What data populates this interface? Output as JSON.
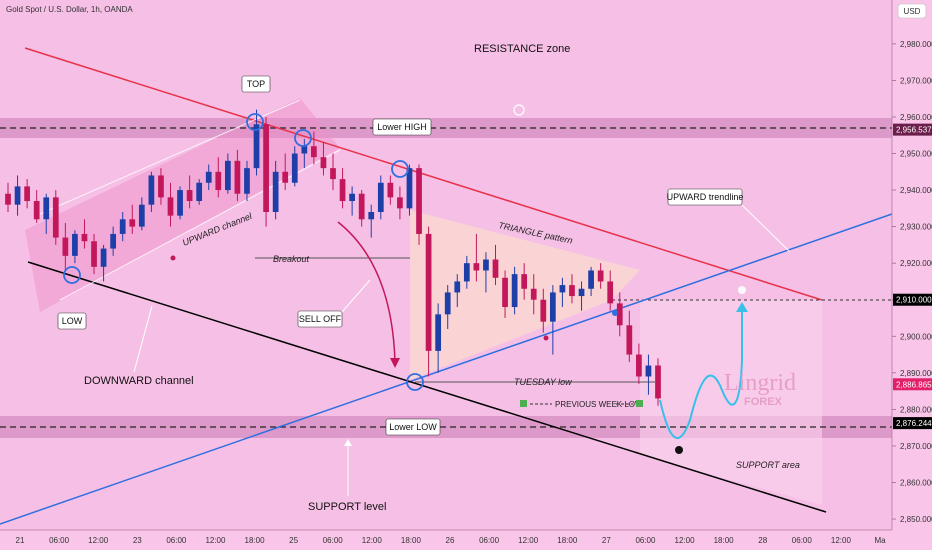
{
  "chart_data": {
    "type": "candlestick",
    "title": "Gold Spot / U.S. Dollar, 1h, OANDA",
    "currency": "USD",
    "ylim": [
      2847,
      2992
    ],
    "y_ticks": [
      2850,
      2860,
      2870,
      2880,
      2890,
      2900,
      2910,
      2920,
      2930,
      2940,
      2950,
      2960,
      2970,
      2980
    ],
    "y_tick_labels": [
      "2,850.000",
      "2,860.000",
      "2,870.000",
      "2,880.000",
      "2,890.000",
      "2,900.000",
      "2,910.000",
      "2,920.000",
      "2,930.000",
      "2,940.000",
      "2,950.000",
      "2,960.000",
      "2,970.000",
      "2,980.000"
    ],
    "x_ticks": [
      "21",
      "06:00",
      "12:00",
      "23",
      "06:00",
      "12:00",
      "18:00",
      "25",
      "06:00",
      "12:00",
      "18:00",
      "26",
      "06:00",
      "12:00",
      "18:00",
      "27",
      "06:00",
      "12:00",
      "18:00",
      "28",
      "06:00",
      "12:00",
      "Ma"
    ],
    "price_tags": [
      {
        "value": 2956.537,
        "label": "2,956.537",
        "color": "#6b1e4b"
      },
      {
        "value": 2910.0,
        "label": "2,910.000",
        "color": "#000000"
      },
      {
        "value": 2886.865,
        "label": "2,886.865",
        "color": "#e2206a"
      },
      {
        "value": 2876.244,
        "label": "2,876.244",
        "color": "#000000"
      }
    ],
    "series": [
      {
        "name": "",
        "ohlc": [
          [
            2939,
            2942,
            2934,
            2936
          ],
          [
            2936,
            2944,
            2933,
            2941
          ],
          [
            2941,
            2943,
            2935,
            2937
          ],
          [
            2937,
            2940,
            2931,
            2932
          ],
          [
            2932,
            2939,
            2928,
            2938
          ],
          [
            2938,
            2940,
            2925,
            2927
          ],
          [
            2927,
            2931,
            2918,
            2922
          ],
          [
            2922,
            2929,
            2920,
            2928
          ],
          [
            2928,
            2932,
            2924,
            2926
          ],
          [
            2926,
            2928,
            2917,
            2919
          ],
          [
            2919,
            2925,
            2915,
            2924
          ],
          [
            2924,
            2930,
            2922,
            2928
          ],
          [
            2928,
            2934,
            2926,
            2932
          ],
          [
            2932,
            2936,
            2928,
            2930
          ],
          [
            2930,
            2938,
            2929,
            2936
          ],
          [
            2936,
            2945,
            2934,
            2944
          ],
          [
            2944,
            2946,
            2936,
            2938
          ],
          [
            2938,
            2942,
            2930,
            2933
          ],
          [
            2933,
            2941,
            2932,
            2940
          ],
          [
            2940,
            2944,
            2935,
            2937
          ],
          [
            2937,
            2943,
            2936,
            2942
          ],
          [
            2942,
            2947,
            2940,
            2945
          ],
          [
            2945,
            2949,
            2938,
            2940
          ],
          [
            2940,
            2950,
            2939,
            2948
          ],
          [
            2948,
            2951,
            2937,
            2939
          ],
          [
            2939,
            2948,
            2937,
            2946
          ],
          [
            2946,
            2962,
            2944,
            2958
          ],
          [
            2958,
            2960,
            2930,
            2934
          ],
          [
            2934,
            2948,
            2932,
            2945
          ],
          [
            2945,
            2950,
            2940,
            2942
          ],
          [
            2942,
            2952,
            2941,
            2950
          ],
          [
            2950,
            2954,
            2946,
            2952
          ],
          [
            2952,
            2956,
            2947,
            2949
          ],
          [
            2949,
            2953,
            2944,
            2946
          ],
          [
            2946,
            2950,
            2940,
            2943
          ],
          [
            2943,
            2946,
            2935,
            2937
          ],
          [
            2937,
            2941,
            2933,
            2939
          ],
          [
            2939,
            2940,
            2930,
            2932
          ],
          [
            2932,
            2936,
            2927,
            2934
          ],
          [
            2934,
            2944,
            2932,
            2942
          ],
          [
            2942,
            2944,
            2936,
            2938
          ],
          [
            2938,
            2941,
            2932,
            2935
          ],
          [
            2935,
            2947,
            2933,
            2946
          ],
          [
            2946,
            2947,
            2925,
            2928
          ],
          [
            2928,
            2930,
            2889,
            2896
          ],
          [
            2896,
            2909,
            2890,
            2906
          ],
          [
            2906,
            2914,
            2902,
            2912
          ],
          [
            2912,
            2917,
            2908,
            2915
          ],
          [
            2915,
            2922,
            2913,
            2920
          ],
          [
            2920,
            2928,
            2915,
            2918
          ],
          [
            2918,
            2923,
            2912,
            2921
          ],
          [
            2921,
            2925,
            2914,
            2916
          ],
          [
            2916,
            2918,
            2905,
            2908
          ],
          [
            2908,
            2919,
            2906,
            2917
          ],
          [
            2917,
            2920,
            2910,
            2913
          ],
          [
            2913,
            2917,
            2906,
            2910
          ],
          [
            2910,
            2913,
            2901,
            2904
          ],
          [
            2904,
            2914,
            2895,
            2912
          ],
          [
            2912,
            2916,
            2908,
            2914
          ],
          [
            2914,
            2917,
            2909,
            2911
          ],
          [
            2911,
            2915,
            2907,
            2913
          ],
          [
            2913,
            2919,
            2911,
            2918
          ],
          [
            2918,
            2920,
            2913,
            2915
          ],
          [
            2915,
            2918,
            2907,
            2909
          ],
          [
            2909,
            2912,
            2900,
            2903
          ],
          [
            2903,
            2907,
            2893,
            2895
          ],
          [
            2895,
            2898,
            2887,
            2889
          ],
          [
            2889,
            2895,
            2884,
            2892
          ],
          [
            2892,
            2894,
            2881,
            2883
          ]
        ]
      }
    ],
    "annotations": [
      "RESISTANCE zone",
      "TOP",
      "Lower HIGH",
      "UPWARD trendline",
      "UPWARD channel",
      "TRIANGLE pattern",
      "Breakout",
      "SELL OFF",
      "LOW",
      "DOWNWARD channel",
      "TUESDAY low",
      "PREVIOUS WEEK LOW",
      "Lower LOW",
      "SUPPORT area",
      "SUPPORT level"
    ]
  },
  "labels": {
    "title": "Gold Spot / U.S. Dollar, 1h, OANDA",
    "currency": "USD",
    "resistance_zone": "RESISTANCE zone",
    "top": "TOP",
    "lower_high": "Lower HIGH",
    "upward_trendline": "UPWARD trendline",
    "upward_channel": "UPWARD channel",
    "triangle_pattern": "TRIANGLE pattern",
    "breakout": "Breakout",
    "sell_off": "SELL OFF",
    "low": "LOW",
    "downward_channel": "DOWNWARD channel",
    "tuesday_low": "TUESDAY low",
    "previous_week_low": "PREVIOUS WEEK LOW",
    "lower_low": "Lower LOW",
    "support_area": "SUPPORT area",
    "support_level": "SUPPORT level",
    "watermark_main": "Lingrid",
    "watermark_sub": "FOREX"
  },
  "colors": {
    "background": "#f9c6ea",
    "bull": "#1e3fa8",
    "bear": "#c2185b",
    "resistance_line": "#e8324a",
    "trendline": "#2f6fe0",
    "channel_line": "#000000",
    "zone": "#c77ab2",
    "projection": "#38c0e8"
  }
}
